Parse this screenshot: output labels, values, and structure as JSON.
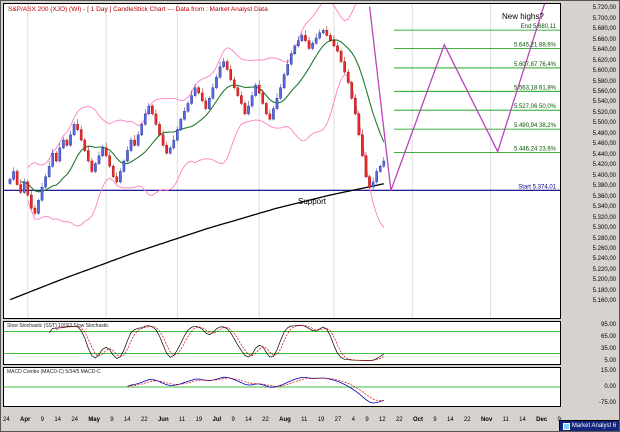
{
  "window": {
    "title": "S&P/ASX 200 (XJO) (WI) - [ 1 Day ] CandleStick Chart --- Data from : Market Analyst Data",
    "annotations": {
      "new_highs": "New highs?",
      "support": "Support"
    },
    "brand_button": "Market Analyst 6"
  },
  "price_axis": {
    "labels": [
      "5.720,00",
      "5.700,00",
      "5.680,00",
      "5.660,00",
      "5.640,00",
      "5.620,00",
      "5.600,00",
      "5.580,00",
      "5.560,00",
      "5.540,00",
      "5.520,00",
      "5.500,00",
      "5.480,00",
      "5.460,00",
      "5.440,00",
      "5.420,00",
      "5.400,00",
      "5.380,00",
      "5.360,00",
      "5.340,00",
      "5.320,00",
      "5.300,00",
      "5.280,00",
      "5.260,00",
      "5.240,00",
      "5.220,00",
      "5.200,00",
      "5.180,00",
      "5.160,00"
    ]
  },
  "date_axis": {
    "labels": [
      "24",
      "Apr",
      "9",
      "14",
      "24",
      "May",
      "9",
      "14",
      "22",
      "Jun",
      "11",
      "19",
      "Jul",
      "9",
      "14",
      "22",
      "Aug",
      "11",
      "19",
      "27",
      "4",
      "9",
      "12",
      "22",
      "Oct",
      "9",
      "14",
      "22",
      "Nov",
      "11",
      "14",
      "Dec",
      "9"
    ]
  },
  "chart_data": {
    "type": "candlestick",
    "title": "S&P/ASX 200 (XJO) (WI) - [ 1 Day ] CandleStick Chart --- Data from : Market Analyst Data",
    "ylim": [
      5130,
      5730
    ],
    "closes": [
      5395,
      5410,
      5385,
      5370,
      5390,
      5365,
      5340,
      5330,
      5355,
      5380,
      5400,
      5420,
      5445,
      5430,
      5455,
      5470,
      5460,
      5480,
      5500,
      5490,
      5470,
      5450,
      5430,
      5410,
      5425,
      5440,
      5455,
      5440,
      5420,
      5400,
      5390,
      5410,
      5430,
      5450,
      5470,
      5460,
      5480,
      5500,
      5520,
      5535,
      5520,
      5500,
      5480,
      5460,
      5445,
      5455,
      5470,
      5490,
      5510,
      5525,
      5540,
      5555,
      5570,
      5560,
      5545,
      5530,
      5550,
      5570,
      5590,
      5610,
      5620,
      5605,
      5585,
      5570,
      5555,
      5540,
      5520,
      5535,
      5555,
      5575,
      5560,
      5540,
      5520,
      5510,
      5530,
      5550,
      5570,
      5595,
      5615,
      5635,
      5650,
      5660,
      5670,
      5660,
      5645,
      5655,
      5665,
      5675,
      5680,
      5670,
      5660,
      5650,
      5640,
      5620,
      5600,
      5580,
      5550,
      5520,
      5480,
      5440,
      5400,
      5380,
      5390,
      5410,
      5420,
      5430
    ],
    "overlays": {
      "bollinger_window": 18,
      "bollinger_mult": 2.1,
      "ma_green_window": 12,
      "ma_black_points": [
        [
          0,
          5165
        ],
        [
          15,
          5205
        ],
        [
          35,
          5255
        ],
        [
          55,
          5300
        ],
        [
          75,
          5340
        ],
        [
          90,
          5365
        ],
        [
          106,
          5388
        ]
      ]
    },
    "fibonacci": [
      {
        "label": "End 5.680,11",
        "price": 5680.11,
        "kind": "end"
      },
      {
        "label": "5.645,21 88,6%",
        "price": 5645.21,
        "kind": "level"
      },
      {
        "label": "5.607,87 76,4%",
        "price": 5607.87,
        "kind": "level"
      },
      {
        "label": "5.563,18 61,8%",
        "price": 5563.18,
        "kind": "level"
      },
      {
        "label": "5.527,06 50,0%",
        "price": 5527.06,
        "kind": "level"
      },
      {
        "label": "5.490,94 38,2%",
        "price": 5490.94,
        "kind": "level"
      },
      {
        "label": "5.446,24 23,6%",
        "price": 5446.24,
        "kind": "level"
      },
      {
        "label": "Start 5.374,01",
        "price": 5374.01,
        "kind": "start"
      }
    ],
    "projection_zigzag": [
      [
        101,
        5725
      ],
      [
        107,
        5374
      ],
      [
        122,
        5652
      ],
      [
        137,
        5448
      ],
      [
        152,
        5770
      ]
    ],
    "month_gridline_days": [
      5,
      27,
      47,
      70,
      91,
      113,
      135,
      156
    ],
    "panels": {
      "stochastic": {
        "label": "Slow Stochastic (SST) 10/3/3 Slow Stochastic",
        "axis_labels": [
          "95.00",
          "65.00",
          "35.00",
          "5.00"
        ],
        "ref_lines": [
          80,
          20
        ],
        "params": [
          10,
          3,
          3
        ]
      },
      "macd": {
        "label": "MACD Combo (MACD-C) 5/34/5 MACD-C",
        "axis_labels": [
          "15.00",
          "0.00",
          "-75.00"
        ],
        "params": [
          5,
          34,
          5
        ]
      }
    },
    "colors": {
      "title": "#bb0000",
      "candle_up_fill": "#5a6ade",
      "candle_up_stroke": "#1b2a99",
      "candle_down_fill": "#ee2b2b",
      "candle_down_stroke": "#990000",
      "bollinger": "#ff7fc3",
      "ma_green": "#1f7a2f",
      "ma_black": "#000000",
      "support_line": "#000080",
      "fib_line": "#009900",
      "fib_text": "#005500",
      "projection": "#bb44bb",
      "grid": "#dddddd",
      "stoch_k": "#000000",
      "stoch_d": "#dd0000",
      "macd_line": "#0000bb",
      "macd_signal": "#dd0000",
      "panel_ref": "#00aa00",
      "brand_bg": "#14257d",
      "brand_text": "#ffffff"
    }
  }
}
